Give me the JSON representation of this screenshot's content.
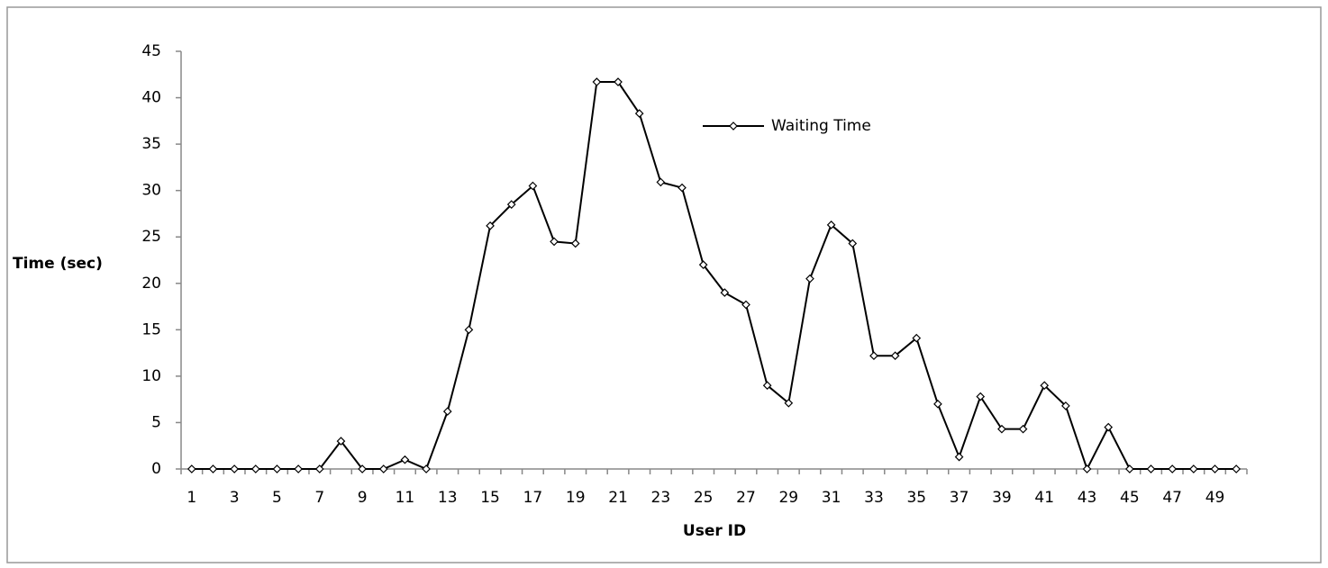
{
  "chart_data": {
    "type": "line",
    "xlabel": "User ID",
    "ylabel": "Time (sec)",
    "categories": [
      1,
      null,
      3,
      null,
      5,
      null,
      7,
      null,
      9,
      null,
      11,
      null,
      13,
      null,
      15,
      null,
      17,
      null,
      19,
      null,
      21,
      null,
      23,
      null,
      25,
      null,
      27,
      null,
      29,
      null,
      31,
      null,
      33,
      null,
      35,
      null,
      37,
      null,
      39,
      null,
      41,
      null,
      43,
      null,
      45,
      null,
      47,
      null,
      49,
      null
    ],
    "series": [
      {
        "name": "Waiting Time",
        "color": "#000000",
        "values": [
          0,
          0,
          0,
          0,
          0,
          0,
          0,
          3,
          0,
          0,
          1,
          0,
          6.2,
          15,
          26.2,
          28.5,
          30.5,
          24.5,
          24.3,
          41.7,
          41.7,
          38.3,
          30.9,
          30.3,
          22,
          19,
          17.7,
          9,
          7.1,
          20.5,
          26.3,
          24.3,
          12.2,
          12.2,
          14.1,
          7,
          1.3,
          7.8,
          4.3,
          4.3,
          9,
          6.8,
          0,
          4.5,
          0,
          0,
          0,
          0,
          0,
          0
        ]
      }
    ],
    "ylim": [
      0,
      45
    ],
    "yticks": [
      0,
      5,
      10,
      15,
      20,
      25,
      30,
      35,
      40,
      45
    ],
    "grid": false,
    "legend": "top"
  }
}
